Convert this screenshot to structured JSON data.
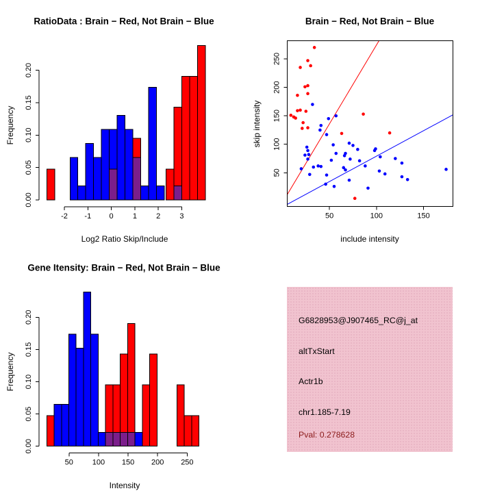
{
  "figure": {
    "background": "#ffffff"
  },
  "colors": {
    "red": "#ff0000",
    "blue": "#0000ff",
    "purple": "#7b1e8b",
    "axis": "#000000",
    "info_panel_bg": "#f1c3cf",
    "pval_text": "#8b1a1a"
  },
  "chart_data": [
    {
      "id": "ratio_histogram",
      "type": "bar",
      "title": "RatioData : Brain − Red, Not Brain − Blue",
      "xlabel": "Log2 Ratio Skip/Include",
      "ylabel": "Frequency",
      "xlim": [
        -3.08,
        4.24
      ],
      "ylim": [
        -0.0106,
        0.2407
      ],
      "bin_width": 0.335,
      "x_ticks": [
        {
          "v": -2,
          "label": "-2"
        },
        {
          "v": -1,
          "label": "-1"
        },
        {
          "v": 0,
          "label": "0"
        },
        {
          "v": 1,
          "label": "1"
        },
        {
          "v": 2,
          "label": "2"
        },
        {
          "v": 3,
          "label": "3"
        }
      ],
      "y_ticks": [
        {
          "v": 0,
          "label": "0.00"
        },
        {
          "v": 0.05,
          "label": "0.05"
        },
        {
          "v": 0.1,
          "label": "0.10"
        },
        {
          "v": 0.15,
          "label": "0.15"
        },
        {
          "v": 0.2,
          "label": "0.20"
        }
      ],
      "series": [
        {
          "name": "Not Brain",
          "color_key": "blue",
          "bars": [
            {
              "x": -1.76,
              "h": 0.0652
            },
            {
              "x": -1.425,
              "h": 0.0217
            },
            {
              "x": -1.09,
              "h": 0.087
            },
            {
              "x": -0.755,
              "h": 0.0652
            },
            {
              "x": -0.42,
              "h": 0.1087
            },
            {
              "x": -0.085,
              "h": 0.1087
            },
            {
              "x": 0.25,
              "h": 0.1304
            },
            {
              "x": 0.585,
              "h": 0.1087
            },
            {
              "x": 0.92,
              "h": 0.0652
            },
            {
              "x": 1.255,
              "h": 0.0217
            },
            {
              "x": 1.59,
              "h": 0.1739
            },
            {
              "x": 1.925,
              "h": 0.0217
            }
          ]
        },
        {
          "name": "Brain",
          "color_key": "red",
          "bars": [
            {
              "x": -2.75,
              "h": 0.0476
            },
            {
              "x": -0.085,
              "h": 0.0476
            },
            {
              "x": 0.92,
              "h": 0.0952
            },
            {
              "x": 2.33,
              "h": 0.0476
            },
            {
              "x": 2.665,
              "h": 0.1429
            },
            {
              "x": 3.0,
              "h": 0.1905
            },
            {
              "x": 3.335,
              "h": 0.1905
            },
            {
              "x": 3.67,
              "h": 0.2381
            }
          ]
        },
        {
          "name": "Overlap",
          "color_key": "purple",
          "bars": [
            {
              "x": -0.085,
              "h": 0.0476
            },
            {
              "x": 0.92,
              "h": 0.0652
            },
            {
              "x": 2.665,
              "h": 0.0217
            }
          ]
        }
      ]
    },
    {
      "id": "intensity_scatter",
      "type": "scatter",
      "title": "Brain − Red, Not Brain − Blue",
      "xlabel": "include intensity",
      "ylabel": "skip intensity",
      "xlim": [
        5,
        181.4
      ],
      "ylim": [
        -9.4,
        282.1
      ],
      "x_ticks": [
        {
          "v": 50,
          "label": "50"
        },
        {
          "v": 100,
          "label": "100"
        },
        {
          "v": 150,
          "label": "150"
        }
      ],
      "y_ticks": [
        {
          "v": 50,
          "label": "50"
        },
        {
          "v": 100,
          "label": "100"
        },
        {
          "v": 150,
          "label": "150"
        },
        {
          "v": 200,
          "label": "200"
        },
        {
          "v": 250,
          "label": "250"
        }
      ],
      "series": [
        {
          "name": "Brain",
          "color_key": "red",
          "points": [
            [
              34,
              270
            ],
            [
              27,
              247
            ],
            [
              30,
              238
            ],
            [
              19,
              235
            ],
            [
              24,
              201
            ],
            [
              27,
              203
            ],
            [
              27,
              189
            ],
            [
              16,
              186
            ],
            [
              16,
              159
            ],
            [
              19,
              160
            ],
            [
              25,
              158
            ],
            [
              9,
              151
            ],
            [
              12,
              148
            ],
            [
              14,
              146
            ],
            [
              22,
              138
            ],
            [
              21,
              128
            ],
            [
              27,
              129
            ],
            [
              86,
              153
            ],
            [
              63,
              119
            ],
            [
              114,
              120
            ],
            [
              77,
              5
            ]
          ]
        },
        {
          "name": "Not Brain",
          "color_key": "blue",
          "points": [
            [
              32,
              170
            ],
            [
              49,
              145
            ],
            [
              57,
              150
            ],
            [
              41,
              133
            ],
            [
              40,
              125
            ],
            [
              47,
              117
            ],
            [
              54,
              99
            ],
            [
              26,
              95
            ],
            [
              27,
              89
            ],
            [
              24,
              81
            ],
            [
              28,
              82
            ],
            [
              27,
              74
            ],
            [
              57,
              84
            ],
            [
              52,
              72
            ],
            [
              38,
              62
            ],
            [
              41,
              61
            ],
            [
              33,
              60
            ],
            [
              20,
              57
            ],
            [
              29,
              47
            ],
            [
              47,
              46
            ],
            [
              71,
              102
            ],
            [
              75,
              98
            ],
            [
              66,
              80
            ],
            [
              67,
              84
            ],
            [
              80,
              91
            ],
            [
              82,
              71
            ],
            [
              72,
              74
            ],
            [
              88,
              62
            ],
            [
              67,
              55
            ],
            [
              65,
              59
            ],
            [
              71,
              37
            ],
            [
              55,
              26
            ],
            [
              46,
              30
            ],
            [
              91,
              23
            ],
            [
              99,
              92
            ],
            [
              98,
              89
            ],
            [
              104,
              78
            ],
            [
              120,
              75
            ],
            [
              127,
              67
            ],
            [
              103,
              53
            ],
            [
              109,
              48
            ],
            [
              127,
              43
            ],
            [
              133,
              38
            ],
            [
              174,
              56
            ]
          ]
        }
      ],
      "lines": [
        {
          "name": "brain-fit",
          "color_key": "red",
          "slope": 2.77,
          "intercept": -2.6
        },
        {
          "name": "notbrain-fit",
          "color_key": "blue",
          "slope": 0.893,
          "intercept": -10.1
        }
      ]
    },
    {
      "id": "gene_intensity_histogram",
      "type": "bar",
      "title": "Gene Itensity: Brain − Red, Not Brain − Blue",
      "xlabel": "Intensity",
      "ylabel": "Frequency",
      "xlim": [
        -0.7,
        287.8
      ],
      "ylim": [
        -0.0106,
        0.2407
      ],
      "bin_width": 12.45,
      "x_ticks": [
        {
          "v": 50,
          "label": "50"
        },
        {
          "v": 100,
          "label": "100"
        },
        {
          "v": 150,
          "label": "150"
        },
        {
          "v": 200,
          "label": "200"
        },
        {
          "v": 250,
          "label": "250"
        }
      ],
      "y_ticks": [
        {
          "v": 0,
          "label": "0.00"
        },
        {
          "v": 0.05,
          "label": "0.05"
        },
        {
          "v": 0.1,
          "label": "0.10"
        },
        {
          "v": 0.15,
          "label": "0.15"
        },
        {
          "v": 0.2,
          "label": "0.20"
        }
      ],
      "series": [
        {
          "name": "Not Brain",
          "color_key": "blue",
          "bars": [
            {
              "x": 24.8,
              "h": 0.0652
            },
            {
              "x": 37.25,
              "h": 0.0652
            },
            {
              "x": 49.7,
              "h": 0.1739
            },
            {
              "x": 62.15,
              "h": 0.1522
            },
            {
              "x": 74.6,
              "h": 0.2391
            },
            {
              "x": 87.05,
              "h": 0.1739
            },
            {
              "x": 99.5,
              "h": 0.0217
            },
            {
              "x": 111.95,
              "h": 0.0217
            },
            {
              "x": 124.4,
              "h": 0.0217
            },
            {
              "x": 136.85,
              "h": 0.0217
            },
            {
              "x": 149.3,
              "h": 0.0217
            },
            {
              "x": 161.75,
              "h": 0.0217
            }
          ]
        },
        {
          "name": "Brain",
          "color_key": "red",
          "bars": [
            {
              "x": 12.35,
              "h": 0.0476
            },
            {
              "x": 111.95,
              "h": 0.0952
            },
            {
              "x": 124.4,
              "h": 0.0952
            },
            {
              "x": 136.85,
              "h": 0.1429
            },
            {
              "x": 149.3,
              "h": 0.1905
            },
            {
              "x": 174.2,
              "h": 0.0952
            },
            {
              "x": 186.65,
              "h": 0.1429
            },
            {
              "x": 232.6,
              "h": 0.0952
            },
            {
              "x": 245.05,
              "h": 0.0476
            },
            {
              "x": 257.5,
              "h": 0.0476
            }
          ]
        },
        {
          "name": "Overlap",
          "color_key": "purple",
          "bars": [
            {
              "x": 111.95,
              "h": 0.0217
            },
            {
              "x": 124.4,
              "h": 0.0217
            },
            {
              "x": 136.85,
              "h": 0.0217
            },
            {
              "x": 149.3,
              "h": 0.0217
            }
          ]
        }
      ]
    }
  ],
  "info_panel": {
    "probe_id": "G6828953@J907465_RC@j_at",
    "event_type": "altTxStart",
    "gene": "Actr1b",
    "location": "chr1.185-7.19",
    "pval": "Pval: 0.278628"
  }
}
